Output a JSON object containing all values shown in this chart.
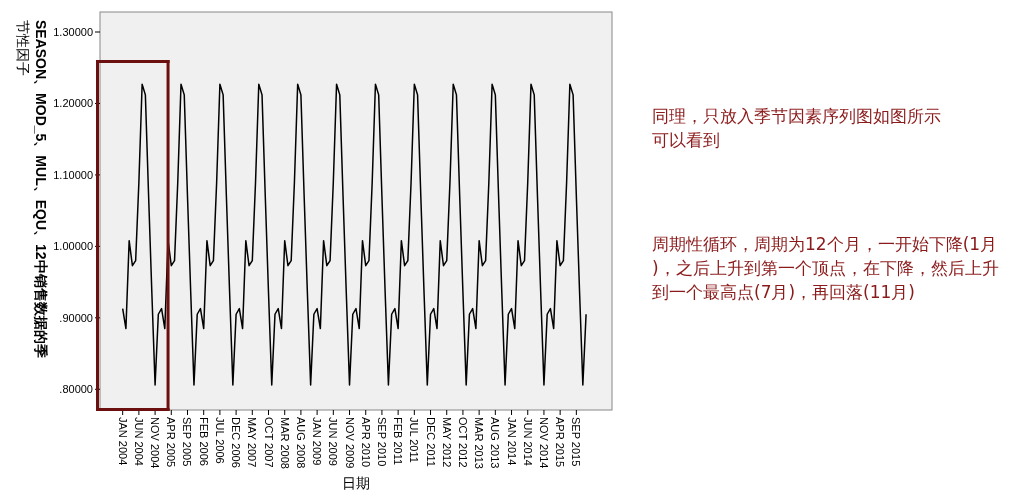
{
  "chart_data": {
    "type": "line",
    "xlabel": "日期",
    "ylabel": "SEASON、MOD_5、MUL、EQU、12中销售数据的季节性因子",
    "color": "#000000",
    "x": [
      "2004-01",
      "2004-02",
      "2004-03",
      "2004-04",
      "2004-05",
      "2004-06",
      "2004-07",
      "2004-08",
      "2004-09",
      "2004-10",
      "2004-11",
      "2004-12",
      "2005-01",
      "2005-02",
      "2005-03",
      "2005-04",
      "2005-05",
      "2005-06",
      "2005-07",
      "2005-08",
      "2005-09",
      "2005-10",
      "2005-11",
      "2005-12",
      "2006-01",
      "2006-02",
      "2006-03",
      "2006-04",
      "2006-05",
      "2006-06",
      "2006-07",
      "2006-08",
      "2006-09",
      "2006-10",
      "2006-11",
      "2006-12",
      "2007-01",
      "2007-02",
      "2007-03",
      "2007-04",
      "2007-05",
      "2007-06",
      "2007-07",
      "2007-08",
      "2007-09",
      "2007-10",
      "2007-11",
      "2007-12",
      "2008-01",
      "2008-02",
      "2008-03",
      "2008-04",
      "2008-05",
      "2008-06",
      "2008-07",
      "2008-08",
      "2008-09",
      "2008-10",
      "2008-11",
      "2008-12",
      "2009-01",
      "2009-02",
      "2009-03",
      "2009-04",
      "2009-05",
      "2009-06",
      "2009-07",
      "2009-08",
      "2009-09",
      "2009-10",
      "2009-11",
      "2009-12",
      "2010-01",
      "2010-02",
      "2010-03",
      "2010-04",
      "2010-05",
      "2010-06",
      "2010-07",
      "2010-08",
      "2010-09",
      "2010-10",
      "2010-11",
      "2010-12",
      "2011-01",
      "2011-02",
      "2011-03",
      "2011-04",
      "2011-05",
      "2011-06",
      "2011-07",
      "2011-08",
      "2011-09",
      "2011-10",
      "2011-11",
      "2011-12",
      "2012-01",
      "2012-02",
      "2012-03",
      "2012-04",
      "2012-05",
      "2012-06",
      "2012-07",
      "2012-08",
      "2012-09",
      "2012-10",
      "2012-11",
      "2012-12",
      "2013-01",
      "2013-02",
      "2013-03",
      "2013-04",
      "2013-05",
      "2013-06",
      "2013-07",
      "2013-08",
      "2013-09",
      "2013-10",
      "2013-11",
      "2013-12",
      "2014-01",
      "2014-02",
      "2014-03",
      "2014-04",
      "2014-05",
      "2014-06",
      "2014-07",
      "2014-08",
      "2014-09",
      "2014-10",
      "2014-11",
      "2014-12",
      "2015-01",
      "2015-02",
      "2015-03",
      "2015-04",
      "2015-05",
      "2015-06",
      "2015-07",
      "2015-08",
      "2015-09",
      "2015-10",
      "2015-11",
      "2015-12"
    ],
    "values": [
      0.913,
      0.885,
      1.008,
      0.973,
      0.98,
      1.09,
      1.227,
      1.212,
      1.07,
      0.935,
      0.806,
      0.905,
      0.913,
      0.885,
      1.008,
      0.973,
      0.98,
      1.09,
      1.227,
      1.212,
      1.07,
      0.935,
      0.806,
      0.905,
      0.913,
      0.885,
      1.008,
      0.973,
      0.98,
      1.09,
      1.227,
      1.212,
      1.07,
      0.935,
      0.806,
      0.905,
      0.913,
      0.885,
      1.008,
      0.973,
      0.98,
      1.09,
      1.227,
      1.212,
      1.07,
      0.935,
      0.806,
      0.905,
      0.913,
      0.885,
      1.008,
      0.973,
      0.98,
      1.09,
      1.227,
      1.212,
      1.07,
      0.935,
      0.806,
      0.905,
      0.913,
      0.885,
      1.008,
      0.973,
      0.98,
      1.09,
      1.227,
      1.212,
      1.07,
      0.935,
      0.806,
      0.905,
      0.913,
      0.885,
      1.008,
      0.973,
      0.98,
      1.09,
      1.227,
      1.212,
      1.07,
      0.935,
      0.806,
      0.905,
      0.913,
      0.885,
      1.008,
      0.973,
      0.98,
      1.09,
      1.227,
      1.212,
      1.07,
      0.935,
      0.806,
      0.905,
      0.913,
      0.885,
      1.008,
      0.973,
      0.98,
      1.09,
      1.227,
      1.212,
      1.07,
      0.935,
      0.806,
      0.905,
      0.913,
      0.885,
      1.008,
      0.973,
      0.98,
      1.09,
      1.227,
      1.212,
      1.07,
      0.935,
      0.806,
      0.905,
      0.913,
      0.885,
      1.008,
      0.973,
      0.98,
      1.09,
      1.227,
      1.212,
      1.07,
      0.935,
      0.806,
      0.905,
      0.913,
      0.885,
      1.008,
      0.973,
      0.98,
      1.09,
      1.227,
      1.212,
      1.07,
      0.935,
      0.806,
      0.905
    ],
    "xlim": [
      "2003-06",
      "2016-08"
    ],
    "ylim": [
      0.771,
      1.328
    ],
    "ref_lines": [
      {
        "axis": "x",
        "value": "2005-03",
        "color": "#6b0f0f"
      }
    ],
    "yticks": [
      {
        "value": 0.8,
        "label": ".80000"
      },
      {
        "value": 0.9,
        "label": ".90000"
      },
      {
        "value": 1.0,
        "label": "1.00000"
      },
      {
        "value": 1.1,
        "label": "1.10000"
      },
      {
        "value": 1.2,
        "label": "1.20000"
      },
      {
        "value": 1.3,
        "label": "1.30000"
      }
    ],
    "xticks": [
      {
        "value": "2004-01",
        "label": "JAN 2004"
      },
      {
        "value": "2004-06",
        "label": "JUN 2004"
      },
      {
        "value": "2004-11",
        "label": "NOV 2004"
      },
      {
        "value": "2005-04",
        "label": "APR 2005"
      },
      {
        "value": "2005-09",
        "label": "SEP 2005"
      },
      {
        "value": "2006-02",
        "label": "FEB 2006"
      },
      {
        "value": "2006-07",
        "label": "JUL 2006"
      },
      {
        "value": "2006-12",
        "label": "DEC 2006"
      },
      {
        "value": "2007-05",
        "label": "MAY 2007"
      },
      {
        "value": "2007-10",
        "label": "OCT 2007"
      },
      {
        "value": "2008-03",
        "label": "MAR 2008"
      },
      {
        "value": "2008-08",
        "label": "AUG 2008"
      },
      {
        "value": "2009-01",
        "label": "JAN 2009"
      },
      {
        "value": "2009-06",
        "label": "JUN 2009"
      },
      {
        "value": "2009-11",
        "label": "NOV 2009"
      },
      {
        "value": "2010-04",
        "label": "APR 2010"
      },
      {
        "value": "2010-09",
        "label": "SEP 2010"
      },
      {
        "value": "2011-02",
        "label": "FEB 2011"
      },
      {
        "value": "2011-07",
        "label": "JUL 2011"
      },
      {
        "value": "2011-12",
        "label": "DEC 2011"
      },
      {
        "value": "2012-05",
        "label": "MAY 2012"
      },
      {
        "value": "2012-10",
        "label": "OCT 2012"
      },
      {
        "value": "2013-03",
        "label": "MAR 2013"
      },
      {
        "value": "2013-08",
        "label": "AUG 2013"
      },
      {
        "value": "2014-01",
        "label": "JAN 2014"
      },
      {
        "value": "2014-06",
        "label": "JUN 2014"
      },
      {
        "value": "2014-11",
        "label": "NOV 2014"
      },
      {
        "value": "2015-04",
        "label": "APR 2015"
      },
      {
        "value": "2015-09",
        "label": "SEP 2015"
      }
    ],
    "annotations": [
      "同理，只放入季节因素序列图如图所示可以看到",
      "周期性循环，周期为12个月，一开始下降(1月)，之后上升到第一个顶点，在下降，然后上升到一个最高点(7月)，再回落(11月)"
    ]
  }
}
